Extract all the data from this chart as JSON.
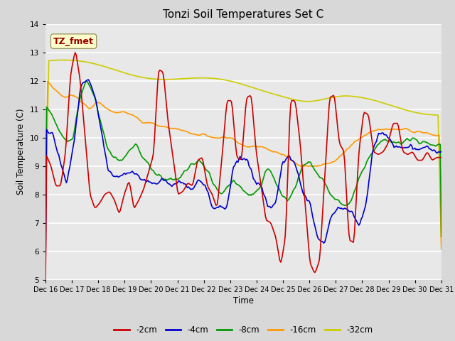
{
  "title": "Tonzi Soil Temperatures Set C",
  "xlabel": "Time",
  "ylabel": "Soil Temperature (C)",
  "ylim": [
    5.0,
    14.0
  ],
  "yticks": [
    5.0,
    6.0,
    7.0,
    8.0,
    9.0,
    10.0,
    11.0,
    12.0,
    13.0,
    14.0
  ],
  "fig_bg": "#d8d8d8",
  "plot_bg": "#e8e8e8",
  "annotation_text": "TZ_fmet",
  "annotation_color": "#990000",
  "annotation_bg": "#ffffcc",
  "annotation_border": "#999966",
  "series_colors": {
    "-2cm": "#cc0000",
    "-4cm": "#0000cc",
    "-8cm": "#009900",
    "-16cm": "#ff9900",
    "-32cm": "#cccc00"
  },
  "lw": 1.2,
  "xtick_labels": [
    "Dec 16",
    "Dec 17",
    "Dec 18",
    "Dec 19",
    "Dec 20",
    "Dec 21",
    "Dec 22",
    "Dec 23",
    "Dec 24",
    "Dec 25",
    "Dec 26",
    "Dec 27",
    "Dec 28",
    "Dec 29",
    "Dec 30",
    "Dec 31"
  ],
  "xtick_positions": [
    0,
    24,
    48,
    72,
    96,
    120,
    144,
    168,
    192,
    216,
    240,
    264,
    288,
    312,
    336,
    360
  ]
}
